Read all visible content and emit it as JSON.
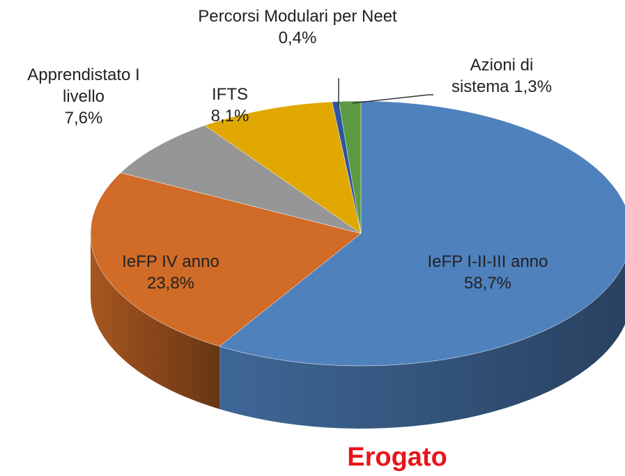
{
  "chart_data": {
    "type": "pie",
    "title": "Erogato",
    "categories": [
      "IeFP I-II-III anno",
      "IeFP IV anno",
      "Apprendistato I livello",
      "IFTS",
      "Percorsi Modulari per Neet",
      "Azioni di sistema"
    ],
    "values": [
      58.7,
      23.8,
      7.6,
      8.1,
      0.4,
      1.3
    ],
    "value_labels": [
      "58,7%",
      "23,8%",
      "7,6%",
      "8,1%",
      "0,4%",
      "1,3%"
    ],
    "colors": [
      "#4f81bd",
      "#d06b28",
      "#969696",
      "#e0a800",
      "#2e55a0",
      "#5b9a43"
    ]
  }
}
